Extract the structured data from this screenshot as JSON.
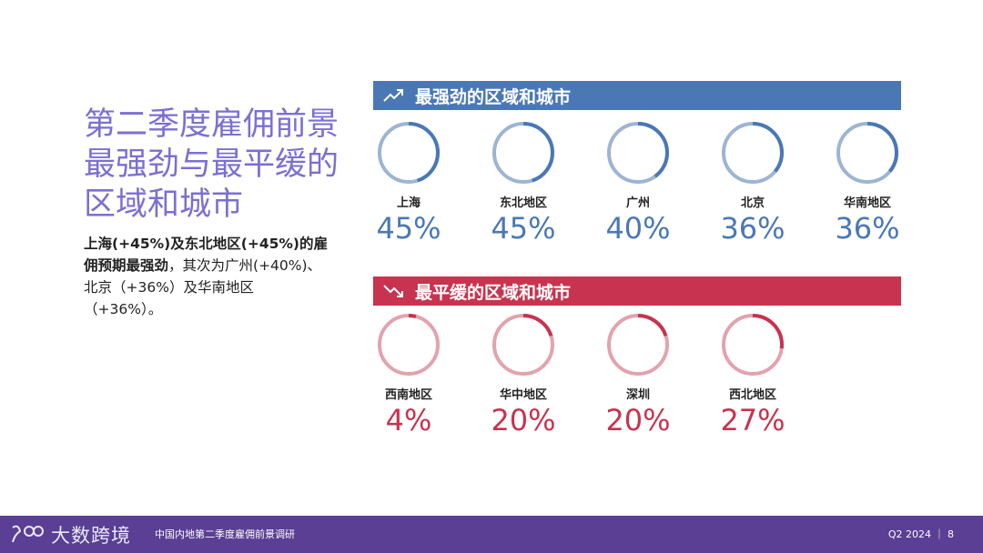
{
  "title": "第二季度雇佣前景最强劲与最平缓的区域和城市",
  "summary": {
    "bold": "上海(+45%)及东北地区(+45%)的雇佣预期最强劲",
    "rest": "，其次为广州(+40%)、北京（+36%）及华南地区（+36%）。"
  },
  "strongest": {
    "heading": "最强劲的区域和城市",
    "icon": "trend-up-icon",
    "color": "#4a78b5",
    "items": [
      {
        "name": "上海",
        "value": 45,
        "label": "45%"
      },
      {
        "name": "东北地区",
        "value": 45,
        "label": "45%"
      },
      {
        "name": "广州",
        "value": 40,
        "label": "40%"
      },
      {
        "name": "北京",
        "value": 36,
        "label": "36%"
      },
      {
        "name": "华南地区",
        "value": 36,
        "label": "36%"
      }
    ]
  },
  "weakest": {
    "heading": "最平缓的区域和城市",
    "icon": "trend-down-icon",
    "color": "#c8334f",
    "items": [
      {
        "name": "西南地区",
        "value": 4,
        "label": "4%"
      },
      {
        "name": "华中地区",
        "value": 20,
        "label": "20%"
      },
      {
        "name": "深圳",
        "value": 20,
        "label": "20%"
      },
      {
        "name": "西北地区",
        "value": 27,
        "label": "27%"
      }
    ]
  },
  "footer": {
    "logo_text": "大数跨境",
    "report_title": "中国内地第二季度雇佣前景调研",
    "page_label": "Q2 2024 ｜ 8"
  }
}
